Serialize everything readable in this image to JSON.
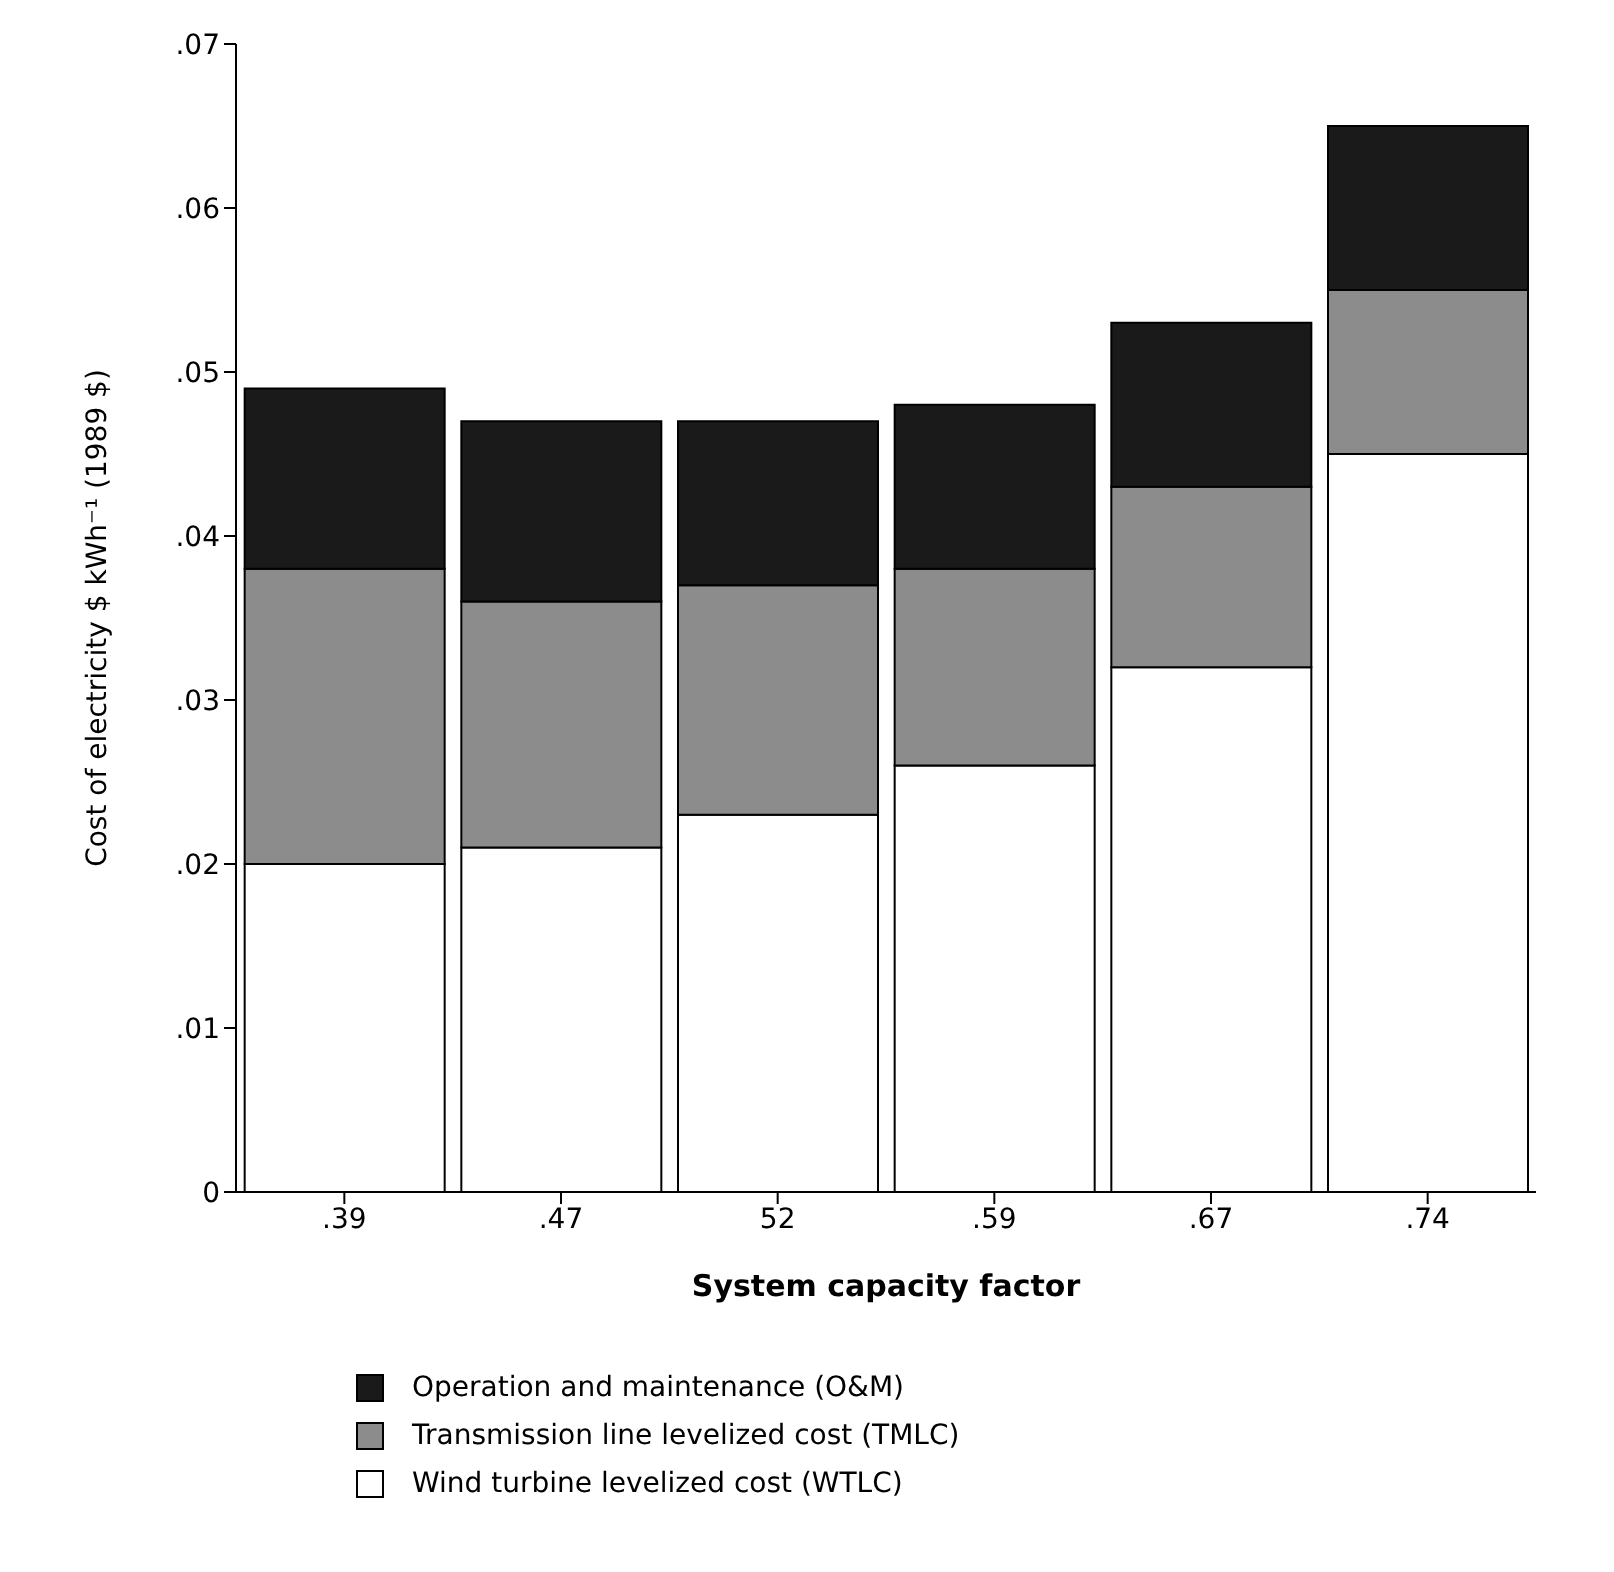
{
  "chart_data": {
    "type": "bar",
    "stacked": true,
    "xlabel": "System capacity factor",
    "ylabel": "Cost of electricity $ kWh⁻¹ (1989 $)",
    "categories": [
      ".39",
      ".47",
      "52",
      ".59",
      ".67",
      ".74"
    ],
    "series": [
      {
        "name": "Wind turbine levelized cost (WTLC)",
        "color": "#ffffff",
        "values": [
          0.02,
          0.021,
          0.023,
          0.026,
          0.032,
          0.045
        ]
      },
      {
        "name": "Transmission line levelized cost (TMLC)",
        "color": "#8c8c8c",
        "values": [
          0.018,
          0.015,
          0.014,
          0.012,
          0.011,
          0.01
        ]
      },
      {
        "name": "Operation and maintenance (O&M)",
        "color": "#1a1a1a",
        "values": [
          0.011,
          0.011,
          0.01,
          0.01,
          0.01,
          0.01
        ]
      }
    ],
    "ylim": [
      0,
      0.07
    ],
    "yticks": [
      {
        "value": 0,
        "label": "0"
      },
      {
        "value": 0.01,
        "label": ".01"
      },
      {
        "value": 0.02,
        "label": ".02"
      },
      {
        "value": 0.03,
        "label": ".03"
      },
      {
        "value": 0.04,
        "label": ".04"
      },
      {
        "value": 0.05,
        "label": ".05"
      },
      {
        "value": 0.06,
        "label": ".06"
      },
      {
        "value": 0.07,
        "label": ".07"
      }
    ],
    "grid": false,
    "legend": "bottom"
  }
}
